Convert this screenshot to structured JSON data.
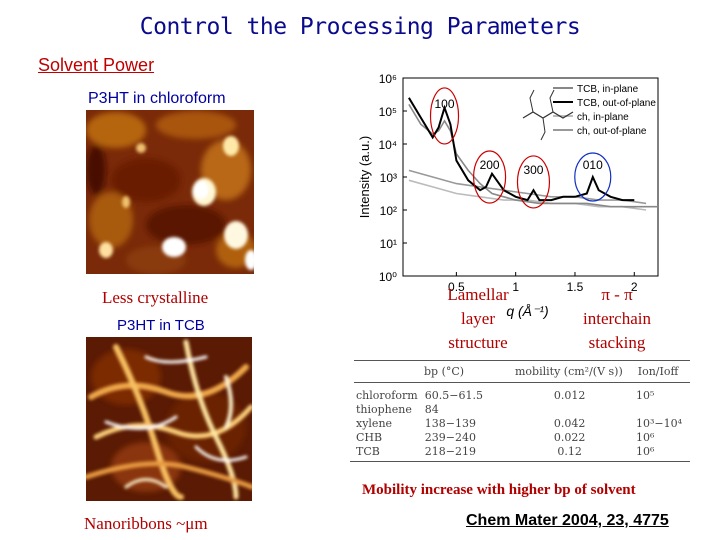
{
  "title": "Control the Processing Parameters",
  "solvent_power": "Solvent Power",
  "afm_top_label": "P3HT in chloroform",
  "afm_top_caption": "Less crystalline",
  "afm_bottom_label": "P3HT in TCB",
  "afm_bottom_caption": "Nanoribbons ~μm",
  "annotation_lamellar": [
    "Lamellar",
    "layer",
    "structure"
  ],
  "annotation_pipi": [
    "π - π",
    "interchain",
    "stacking"
  ],
  "table": {
    "headers": [
      "bp (°C)",
      "mobility (cm²/(V s))",
      "Ion/Ioff"
    ],
    "rows": [
      [
        "chloroform",
        "60.5−61.5",
        "0.012",
        "10⁵"
      ],
      [
        "thiophene",
        "84",
        "",
        ""
      ],
      [
        "xylene",
        "138−139",
        "0.042",
        "10³−10⁴"
      ],
      [
        "CHB",
        "239−240",
        "0.022",
        "10⁶"
      ],
      [
        "TCB",
        "218−219",
        "0.12",
        "10⁶"
      ]
    ]
  },
  "mobility_note": "Mobility increase with higher bp of  solvent",
  "citation": "Chem Mater 2004, 23, 4775",
  "chart_data": {
    "type": "line",
    "xlabel": "q (Å⁻¹)",
    "ylabel": "Intensity (a.u.)",
    "x_ticks": [
      "0.5",
      "1",
      "1.5",
      "2"
    ],
    "y_ticks": [
      "10⁰",
      "10¹",
      "10²",
      "10³",
      "10⁴",
      "10⁵",
      "10⁶"
    ],
    "xlim": [
      0.05,
      2.2
    ],
    "ylim_log10": [
      0,
      6
    ],
    "peak_labels": [
      "100",
      "200",
      "300",
      "010"
    ],
    "series": [
      {
        "name": "TCB, in-plane",
        "color": "#888888",
        "x": [
          0.1,
          0.2,
          0.3,
          0.35,
          0.4,
          0.45,
          0.5,
          0.6,
          0.7,
          0.8,
          0.9,
          1.0,
          1.2,
          1.4,
          1.6,
          1.8,
          2.0,
          2.2
        ],
        "y": [
          5.2,
          4.6,
          4.3,
          4.4,
          4.7,
          4.4,
          3.7,
          3.2,
          2.8,
          2.5,
          2.4,
          2.3,
          2.2,
          2.2,
          2.2,
          2.1,
          2.1,
          2.1
        ]
      },
      {
        "name": "TCB, out-of-plane",
        "color": "#000000",
        "x": [
          0.1,
          0.2,
          0.3,
          0.35,
          0.4,
          0.45,
          0.5,
          0.6,
          0.7,
          0.75,
          0.8,
          0.9,
          1.0,
          1.1,
          1.15,
          1.2,
          1.3,
          1.4,
          1.5,
          1.6,
          1.65,
          1.7,
          1.8,
          1.9,
          2.0
        ],
        "y": [
          5.4,
          4.8,
          4.2,
          4.5,
          5.1,
          4.6,
          3.5,
          2.9,
          2.6,
          2.7,
          3.1,
          2.6,
          2.4,
          2.3,
          2.6,
          2.3,
          2.3,
          2.4,
          2.4,
          2.5,
          3.0,
          2.6,
          2.4,
          2.3,
          2.3
        ]
      },
      {
        "name": "ch, in-plane",
        "color": "#bbbbbb",
        "x": [
          0.1,
          0.3,
          0.5,
          0.7,
          0.9,
          1.1,
          1.3,
          1.5,
          1.7,
          1.9,
          2.1
        ],
        "y": [
          2.9,
          2.7,
          2.5,
          2.4,
          2.3,
          2.3,
          2.2,
          2.2,
          2.1,
          2.1,
          2.0
        ]
      },
      {
        "name": "ch, out-of-plane",
        "color": "#999999",
        "x": [
          0.1,
          0.3,
          0.5,
          0.7,
          0.9,
          1.1,
          1.3,
          1.5,
          1.7,
          1.9,
          2.1
        ],
        "y": [
          3.2,
          3.0,
          2.8,
          2.7,
          2.6,
          2.5,
          2.4,
          2.4,
          2.3,
          2.3,
          2.2
        ]
      }
    ]
  }
}
